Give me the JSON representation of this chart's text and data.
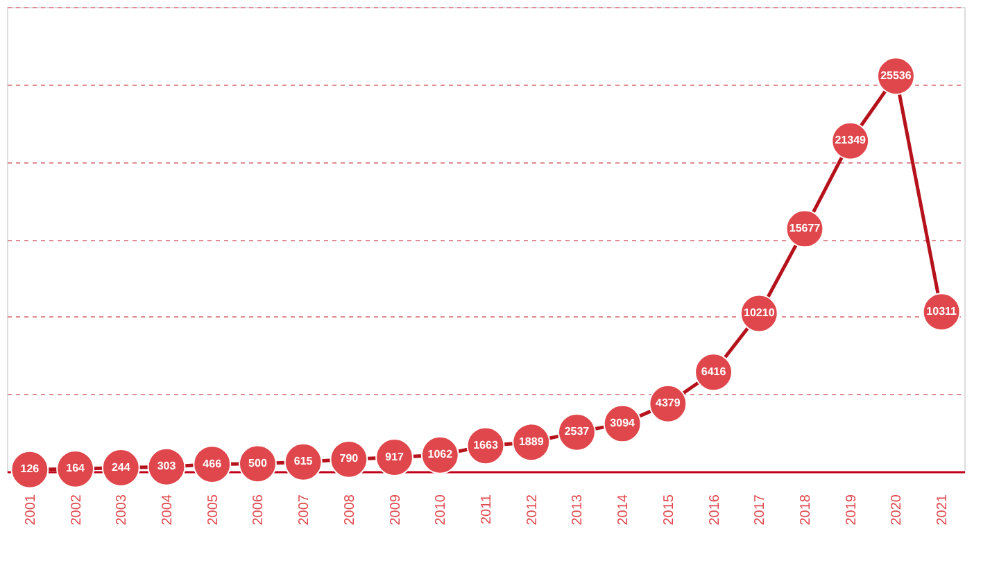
{
  "chart_data": {
    "type": "line",
    "categories": [
      "2001",
      "2002",
      "2003",
      "2004",
      "2005",
      "2006",
      "2007",
      "2008",
      "2009",
      "2010",
      "2011",
      "2012",
      "2013",
      "2014",
      "2015",
      "2016",
      "2017",
      "2018",
      "2019",
      "2020",
      "2021"
    ],
    "series": [
      {
        "color": "#e0474c",
        "values": [
          126,
          164,
          244,
          303,
          466,
          500,
          615,
          790,
          917,
          1062,
          1663,
          1889,
          2537,
          3094,
          4379,
          6416,
          10210,
          15677,
          21349,
          25536,
          10311
        ]
      }
    ],
    "ylim": [
      0,
      30000
    ],
    "yticks": [
      {
        "value": 5000,
        "label": null
      },
      {
        "value": 10000,
        "label": null
      },
      {
        "value": 15000,
        "label": null
      },
      {
        "value": 20000,
        "label": null
      },
      {
        "value": 25000,
        "label": null
      },
      {
        "value": 30000,
        "label": null
      }
    ],
    "grid": "y",
    "marker": "circle",
    "line_style": "solid",
    "data_labels": true,
    "tick_labels": "x"
  }
}
